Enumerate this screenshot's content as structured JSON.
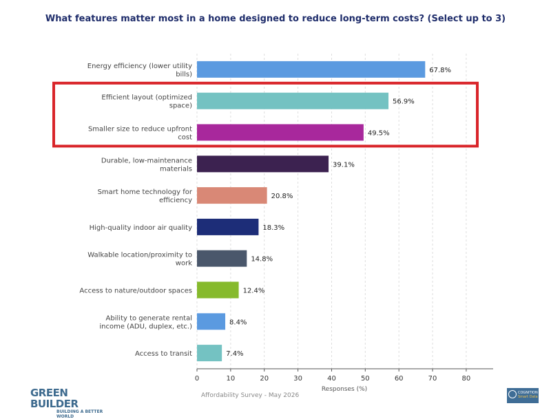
{
  "chart_data": {
    "type": "bar",
    "orientation": "horizontal",
    "title": "What features matter most in a home designed to reduce long-term costs? (Select up to 3)",
    "xlabel": "Responses (%)",
    "ylabel": "",
    "xlim": [
      0,
      88
    ],
    "xticks": [
      0,
      10,
      20,
      30,
      40,
      50,
      60,
      70,
      80
    ],
    "grid": "vertical dashed",
    "categories": [
      [
        "Energy efficiency (lower utility",
        "bills)"
      ],
      [
        "Efficient layout (optimized",
        "space)"
      ],
      [
        "Smaller size to reduce upfront",
        "cost"
      ],
      [
        "Durable, low-maintenance",
        "materials"
      ],
      [
        "Smart home technology for",
        "efficiency"
      ],
      [
        "High-quality indoor air quality"
      ],
      [
        "Walkable location/proximity to",
        "work"
      ],
      [
        "Access to nature/outdoor spaces"
      ],
      [
        "Ability to generate rental",
        "income (ADU, duplex, etc.)"
      ],
      [
        "Access to transit"
      ]
    ],
    "values": [
      67.8,
      56.9,
      49.5,
      39.1,
      20.8,
      18.3,
      14.8,
      12.4,
      8.4,
      7.4
    ],
    "value_labels": [
      "67.8%",
      "56.9%",
      "49.5%",
      "39.1%",
      "20.8%",
      "18.3%",
      "14.8%",
      "12.4%",
      "8.4%",
      "7.4%"
    ],
    "colors": [
      "#5b9ae0",
      "#74c2c2",
      "#a8289c",
      "#3c2250",
      "#d98876",
      "#1d2d78",
      "#4a576b",
      "#86ba2c",
      "#5b9ae0",
      "#74c2c2"
    ],
    "highlight": {
      "categories": [
        1,
        2
      ],
      "color": "#d9252a"
    }
  },
  "footer": {
    "source": "Affordability Survey - May 2026",
    "brand_name": "GREEN BUILDER",
    "brand_tagline": "BUILDING A BETTER WORLD",
    "partner_line1": "COGNITION",
    "partner_line2": "Smart Data"
  }
}
